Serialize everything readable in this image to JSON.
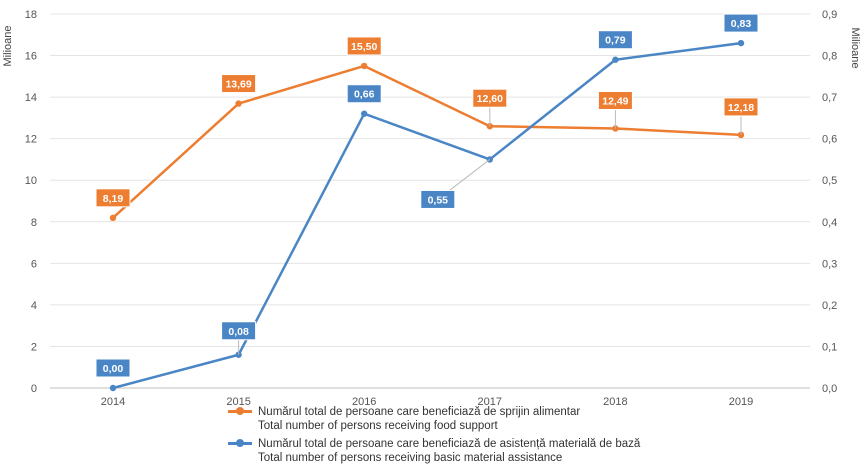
{
  "chart_data": {
    "type": "line",
    "x": [
      "2014",
      "2015",
      "2016",
      "2017",
      "2018",
      "2019"
    ],
    "y_left": {
      "label": "Milioane",
      "range": [
        0,
        18
      ],
      "ticks": [
        "0",
        "2",
        "4",
        "6",
        "8",
        "10",
        "12",
        "14",
        "16",
        "18"
      ]
    },
    "y_right": {
      "label": "Milioane",
      "range": [
        0,
        0.9
      ],
      "ticks": [
        "0,0",
        "0,1",
        "0,2",
        "0,3",
        "0,4",
        "0,5",
        "0,6",
        "0,7",
        "0,8",
        "0,9"
      ]
    },
    "grid": true,
    "legend_placement": "bottom",
    "series": [
      {
        "name": "Numărul total de persoane care beneficiază de sprijin alimentar",
        "name_en": "Total number of persons receiving food support",
        "axis": "left",
        "color": "#ED7D31",
        "values": [
          8.19,
          13.69,
          15.5,
          12.6,
          12.49,
          12.18
        ],
        "labels": [
          "8,19",
          "13,69",
          "15,50",
          "12,60",
          "12,49",
          "12,18"
        ]
      },
      {
        "name": "Numărul total de persoane care beneficiază de asistență materială de bază",
        "name_en": "Total number of persons receiving basic material assistance",
        "axis": "right",
        "color": "#4A86C5",
        "values": [
          0.0,
          0.08,
          0.66,
          0.55,
          0.79,
          0.83
        ],
        "labels": [
          "0,00",
          "0,08",
          "0,66",
          "0,55",
          "0,79",
          "0,83"
        ]
      }
    ]
  }
}
